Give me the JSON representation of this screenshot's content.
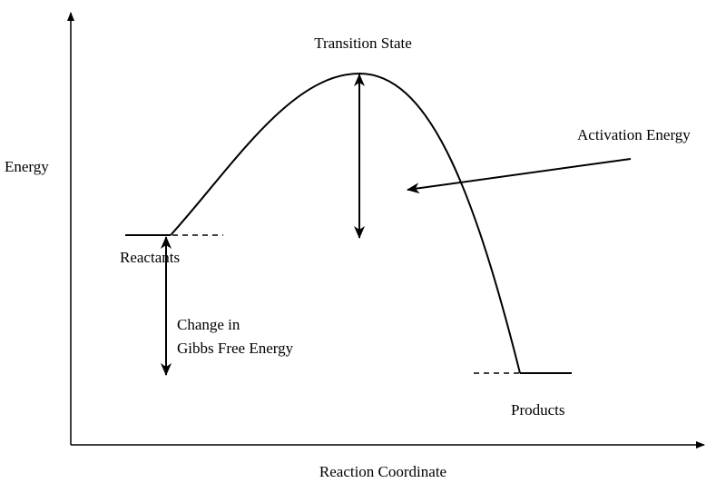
{
  "labels": {
    "transition_state": "Transition State",
    "activation_energy": "Activation Energy",
    "y_axis": "Energy",
    "reactants": "Reactants",
    "gibbs_line1": "Change in",
    "gibbs_line2": "Gibbs Free Energy",
    "products": "Products",
    "x_axis": "Reaction Coordinate"
  },
  "colors": {
    "line": "#000000",
    "background": "#ffffff"
  }
}
